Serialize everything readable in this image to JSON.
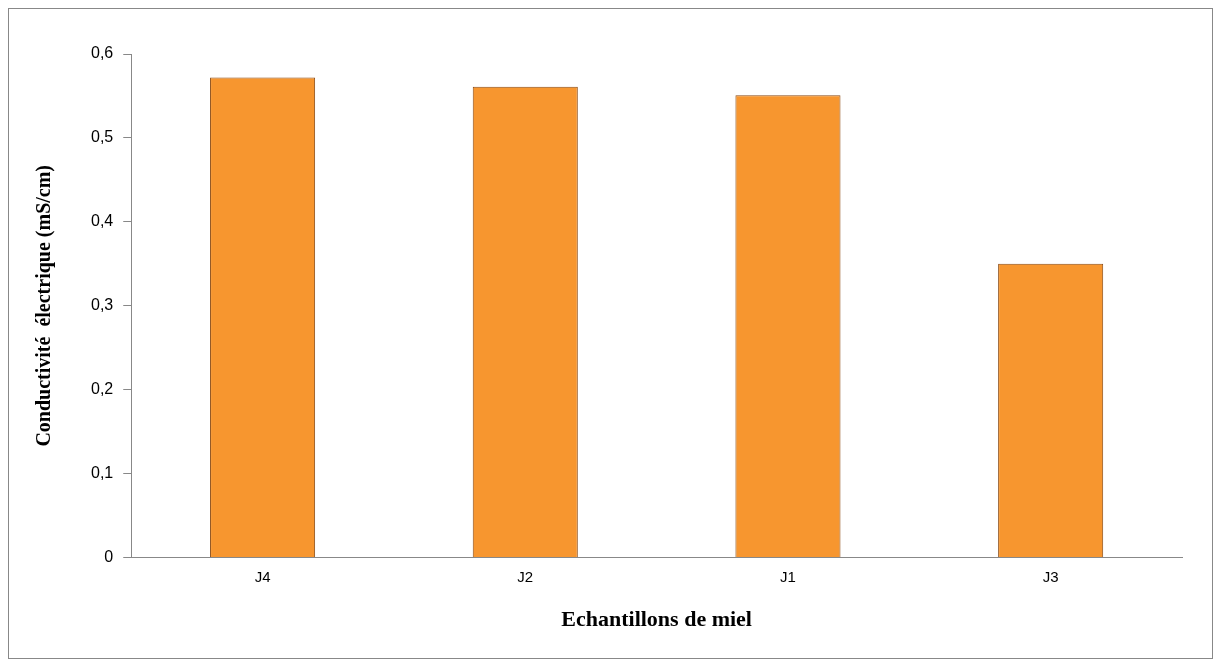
{
  "chart_data": {
    "type": "bar",
    "xlabel": "Echantillons de miel",
    "ylabel": "Conductivité  électrique (mS/cm)",
    "categories": [
      "J4",
      "J2",
      "J1",
      "J3"
    ],
    "values": [
      0.572,
      0.561,
      0.551,
      0.35
    ],
    "color": "#f7962f",
    "ylim": [
      0,
      0.6
    ],
    "yticks": [
      {
        "value": 0,
        "label": "0"
      },
      {
        "value": 0.1,
        "label": "0,1"
      },
      {
        "value": 0.2,
        "label": "0,2"
      },
      {
        "value": 0.3,
        "label": "0,3"
      },
      {
        "value": 0.4,
        "label": "0,4"
      },
      {
        "value": 0.5,
        "label": "0,5"
      },
      {
        "value": 0.6,
        "label": "0,6"
      }
    ],
    "grid": false,
    "legend": false
  }
}
